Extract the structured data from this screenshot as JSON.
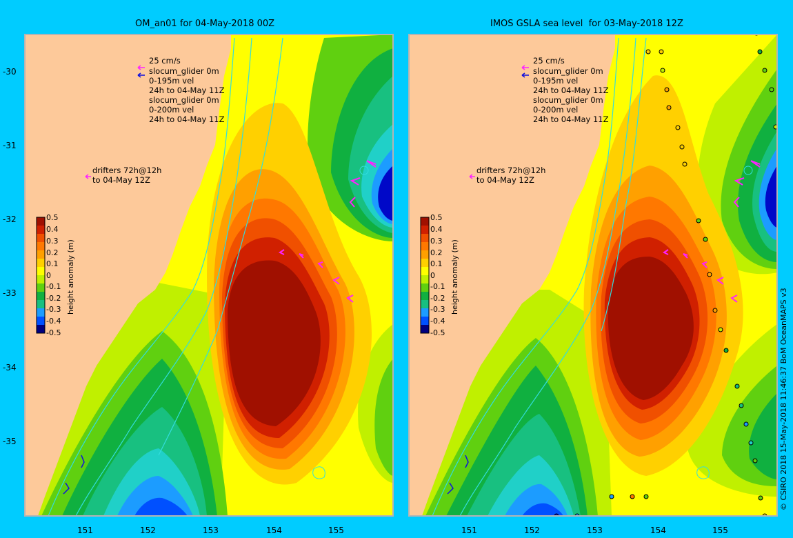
{
  "colors": {
    "background": "#00ccff",
    "land": "#fdc99a",
    "frame": "#b4b4b4",
    "contour": "#33dddd",
    "drifter": "#ff22ff",
    "glider_0m": "#ff22ff",
    "glider_vel": "#1010dd",
    "scale": [
      "#000080",
      "#0008c8",
      "#0050ff",
      "#1c9cff",
      "#20d0c8",
      "#18c080",
      "#10b040",
      "#60d010",
      "#c0f000",
      "#ffff00",
      "#ffd000",
      "#ffa000",
      "#ff7800",
      "#f05000",
      "#d02000",
      "#a01000"
    ]
  },
  "axes": {
    "latitudes": [
      "-30",
      "-31",
      "-32",
      "-33",
      "-34",
      "-35"
    ],
    "longitudes": [
      "151",
      "152",
      "153",
      "154",
      "155"
    ]
  },
  "colorbar": {
    "ticks": [
      "0.5",
      "0.4",
      "0.3",
      "0.2",
      "0.1",
      "0",
      "-0.1",
      "-0.2",
      "-0.3",
      "-0.4",
      "-0.5"
    ],
    "title": "height anomaly (m)"
  },
  "legend": {
    "lines": [
      "25 cm/s",
      "slocum_glider 0m",
      "0-195m vel",
      "24h to 04-May 11Z",
      "slocum_glider 0m",
      "0-200m vel",
      "24h to 04-May 11Z"
    ],
    "drifters": [
      "drifters 72h@12h",
      "to 04-May 12Z"
    ]
  },
  "panels": [
    {
      "title": "OM_an01 for 04-May-2018 00Z"
    },
    {
      "title": "IMOS GSLA sea level  for 03-May-2018 12Z"
    }
  ],
  "credit": "© CSIRO 2018  15-May-2018 11:46:37 BoM OceanMAPS v3"
}
